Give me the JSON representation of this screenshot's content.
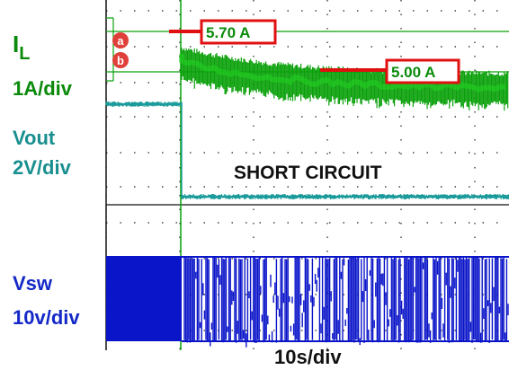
{
  "chart_data": {
    "type": "line",
    "time_scale": "10s/div",
    "annotation": "SHORT CIRCUIT",
    "channels": [
      {
        "name_main": "I",
        "name_sub": "L",
        "scale": "1A/div",
        "color": "#0aa00a",
        "markers": [
          {
            "label": "5.70 A",
            "value": 5.7
          },
          {
            "label": "5.00 A",
            "value": 5.0
          }
        ],
        "cursor_marks": [
          "a",
          "b"
        ]
      },
      {
        "name": "Vout",
        "scale": "2V/div",
        "color": "#1a9a9a"
      },
      {
        "name": "Vsw",
        "scale": "10v/div",
        "color": "#0a14c8"
      }
    ]
  }
}
